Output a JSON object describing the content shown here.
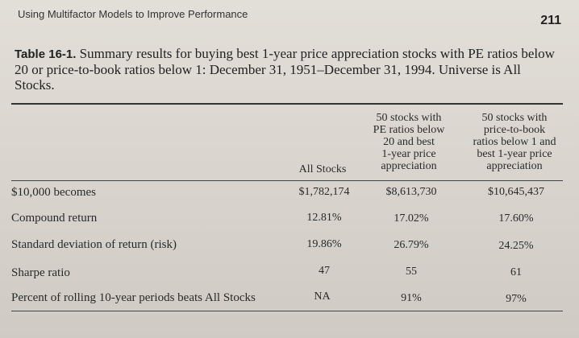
{
  "header": {
    "running_head": "Using Multifactor Models to Improve Performance",
    "page_number": "211"
  },
  "caption": {
    "label": "Table 16-1.",
    "text": "Summary results for buying best 1-year price appreciation stocks with PE ratios below 20 or price-to-book ratios below 1: December 31, 1951–December 31, 1994. Universe is All Stocks."
  },
  "table": {
    "columns": [
      {
        "lines": [
          "All Stocks"
        ]
      },
      {
        "lines": [
          "50 stocks with",
          "PE ratios below",
          "20 and best",
          "1-year price",
          "appreciation"
        ]
      },
      {
        "lines": [
          "50 stocks with",
          "price-to-book",
          "ratios below 1 and",
          "best 1-year price",
          "appreciation"
        ]
      }
    ],
    "rows": [
      {
        "label": "$10,000 becomes",
        "values": [
          "$1,782,174",
          "$8,613,730",
          "$10,645,437"
        ]
      },
      {
        "label": "Compound return",
        "values": [
          "12.81%",
          "17.02%",
          "17.60%"
        ]
      },
      {
        "label": "Standard deviation of return (risk)",
        "values": [
          "19.86%",
          "26.79%",
          "24.25%"
        ]
      },
      {
        "label": "Sharpe ratio",
        "values": [
          "47",
          "55",
          "61"
        ]
      },
      {
        "label": "Percent of rolling 10-year periods beats All Stocks",
        "values": [
          "NA",
          "91%",
          "97%"
        ]
      }
    ]
  }
}
